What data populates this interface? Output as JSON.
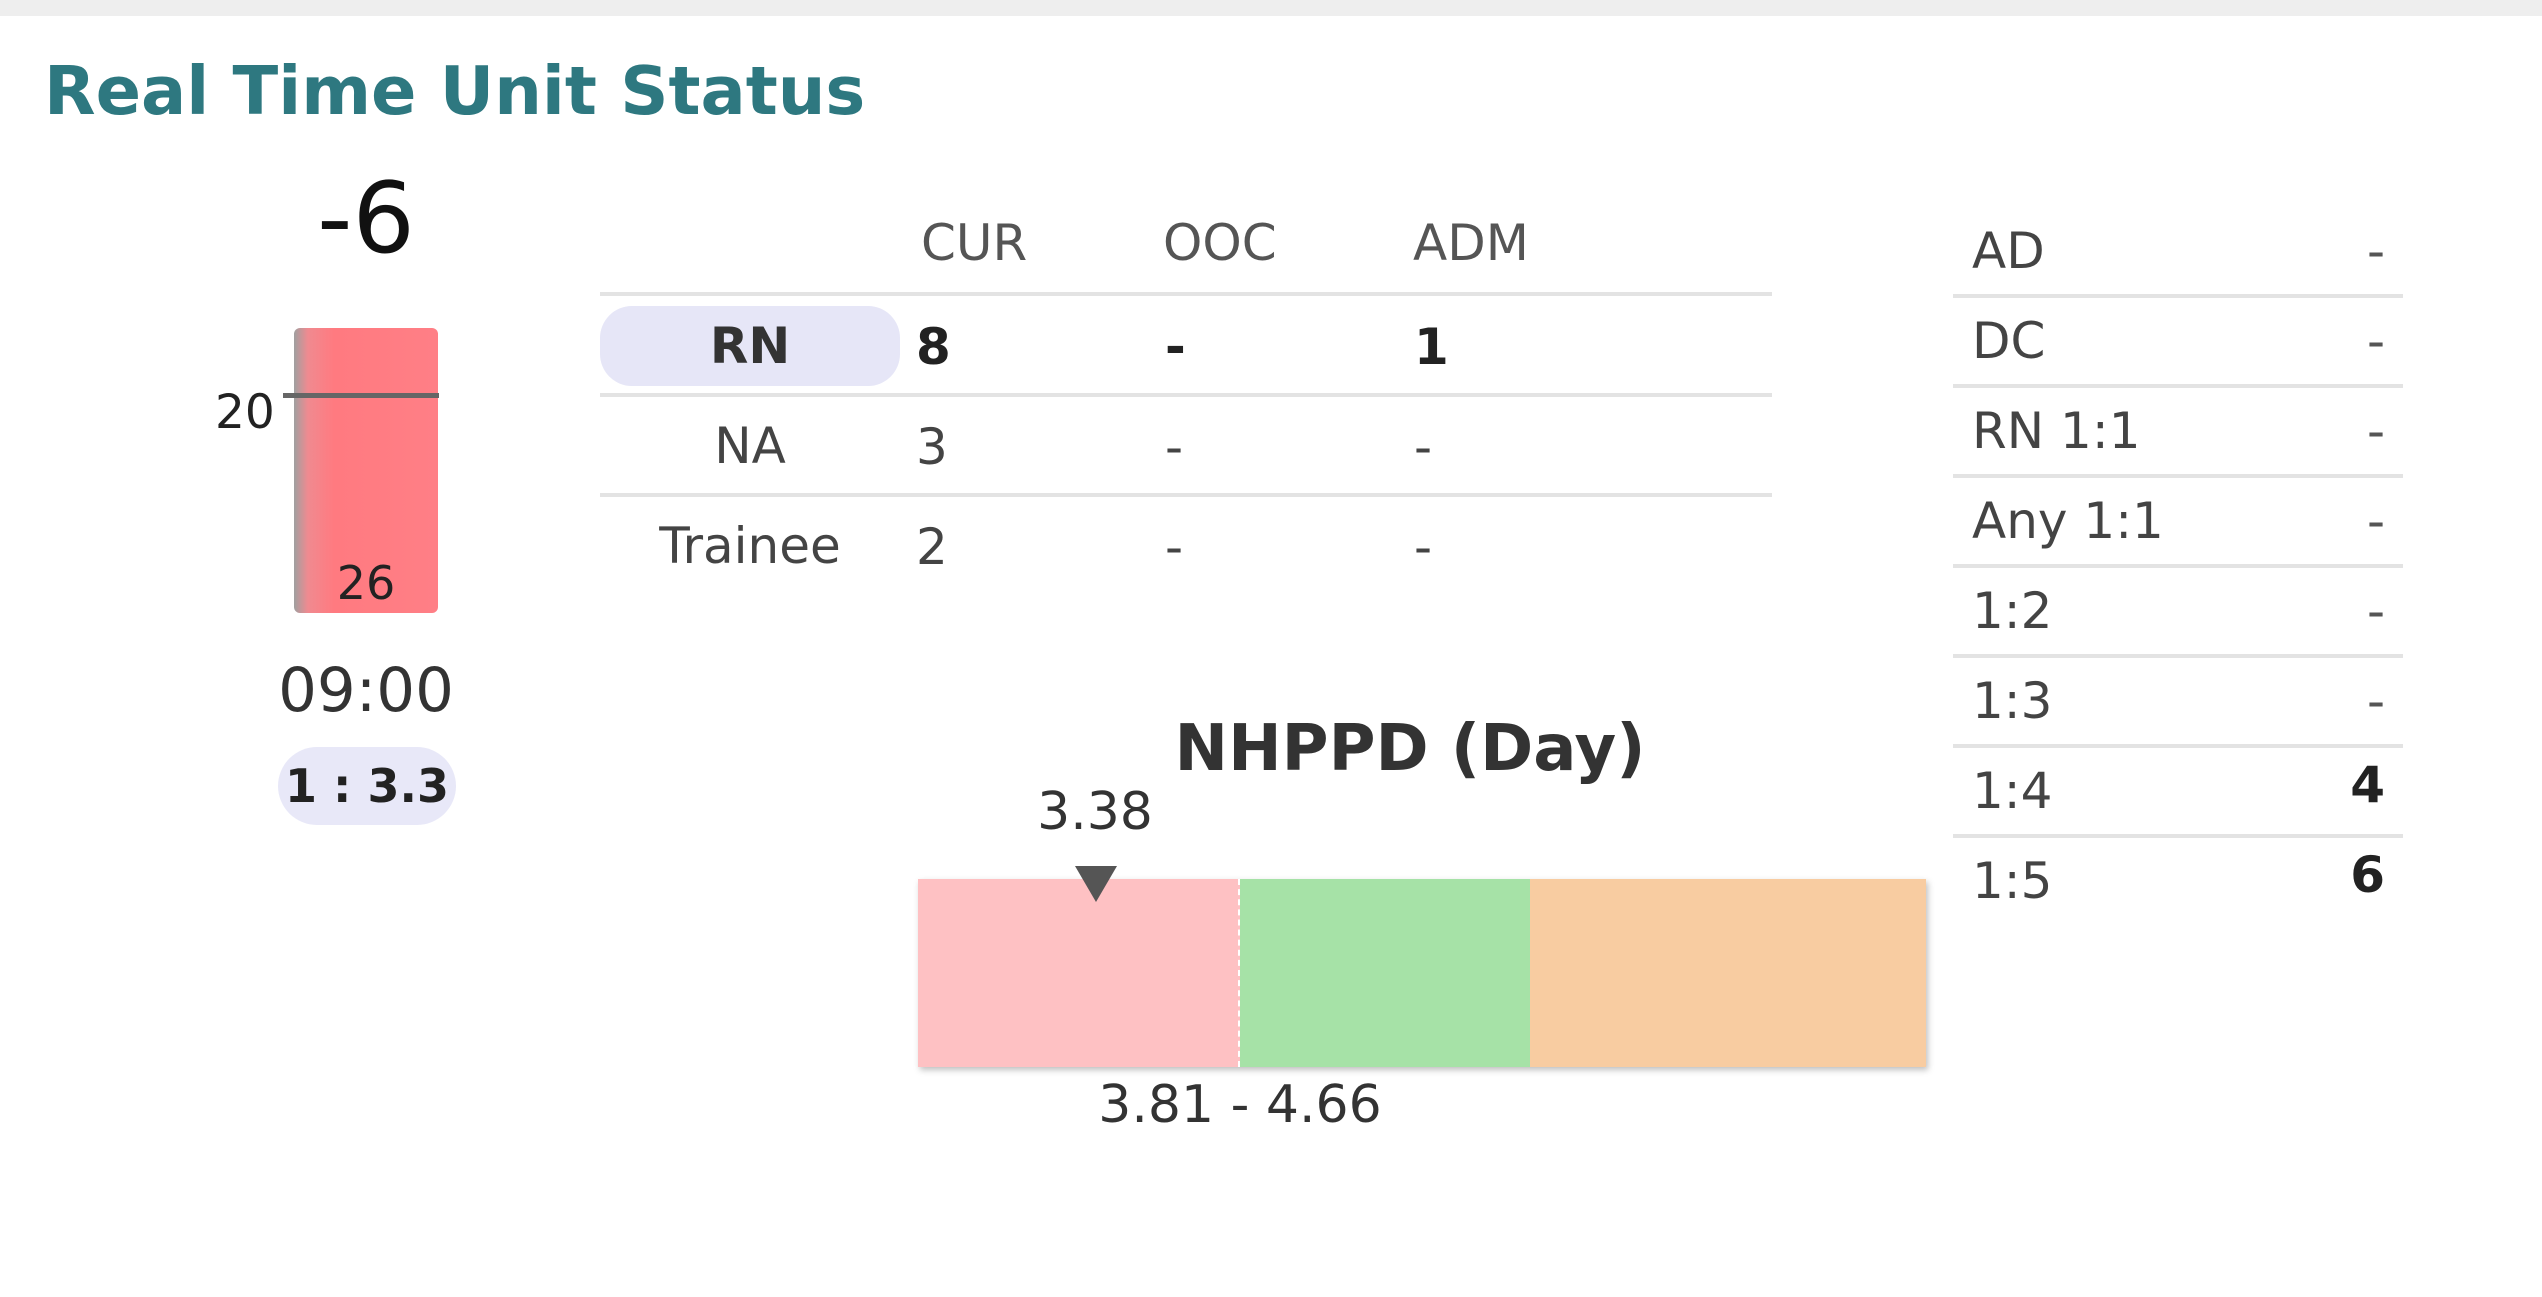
{
  "title": "Real Time Unit Status",
  "gauge": {
    "value": "-6",
    "threshold": "20",
    "count": "26",
    "time": "09:00",
    "ratio": "1 : 3.3",
    "bar_color": "#ff7f86"
  },
  "staff_table": {
    "columns": [
      "CUR",
      "OOC",
      "ADM"
    ],
    "rows": [
      {
        "role": "RN",
        "cur": "8",
        "ooc": "-",
        "adm": "1",
        "selected": true
      },
      {
        "role": "NA",
        "cur": "3",
        "ooc": "-",
        "adm": "-"
      },
      {
        "role": "Trainee",
        "cur": "2",
        "ooc": "-",
        "adm": "-"
      }
    ]
  },
  "nhppd": {
    "title": "NHPPD (Day)",
    "current": "3.38",
    "target_range": "3.81 - 4.66",
    "colors": {
      "below": "#fec1c3",
      "target": "#a6e2a7",
      "above": "#f8cca1"
    }
  },
  "ratios": [
    {
      "label": "AD",
      "value": "-"
    },
    {
      "label": "DC",
      "value": "-"
    },
    {
      "label": "RN 1:1",
      "value": "-"
    },
    {
      "label": "Any 1:1",
      "value": "-"
    },
    {
      "label": "1:2",
      "value": "-"
    },
    {
      "label": "1:3",
      "value": "-"
    },
    {
      "label": "1:4",
      "value": "4"
    },
    {
      "label": "1:5",
      "value": "6"
    }
  ]
}
